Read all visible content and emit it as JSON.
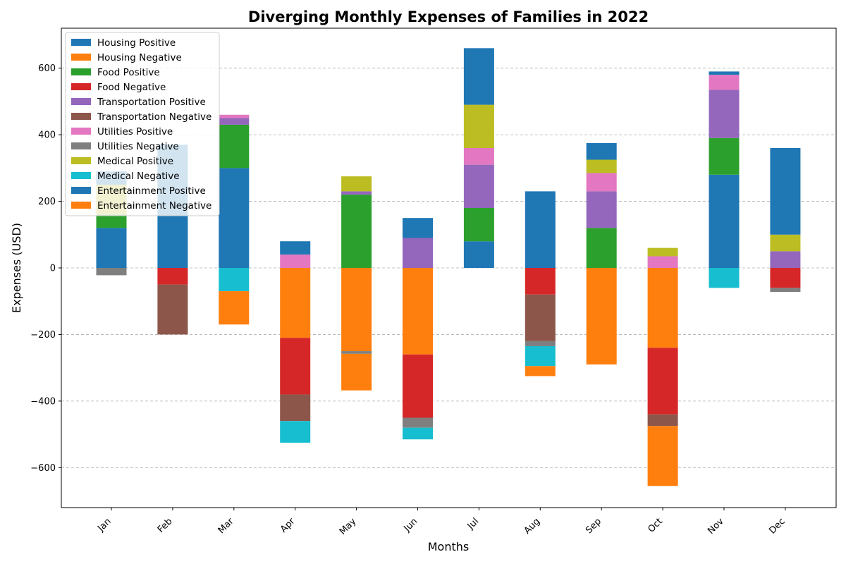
{
  "chart_data": {
    "type": "bar",
    "title": "Diverging Monthly Expenses of Families in 2022",
    "xlabel": "Months",
    "ylabel": "Expenses (USD)",
    "ylim": [
      -720,
      720
    ],
    "yticks": [
      -600,
      -400,
      -200,
      0,
      200,
      400,
      600
    ],
    "grid": "y-dashed",
    "legend_position": "top-left",
    "categories": [
      "Jan",
      "Feb",
      "Mar",
      "Apr",
      "May",
      "Jun",
      "Jul",
      "Aug",
      "Sep",
      "Oct",
      "Nov",
      "Dec"
    ],
    "series": [
      {
        "name": "Housing Positive",
        "sign": "positive",
        "color": "#1f77b4",
        "values": [
          120,
          230,
          300,
          0,
          0,
          0,
          80,
          0,
          0,
          0,
          280,
          0
        ]
      },
      {
        "name": "Housing Negative",
        "sign": "negative",
        "color": "#ff7f0e",
        "values": [
          0,
          0,
          0,
          210,
          250,
          260,
          0,
          0,
          290,
          240,
          0,
          0
        ]
      },
      {
        "name": "Food Positive",
        "sign": "positive",
        "color": "#2ca02c",
        "values": [
          40,
          0,
          130,
          0,
          220,
          0,
          100,
          0,
          120,
          0,
          110,
          0
        ]
      },
      {
        "name": "Food Negative",
        "sign": "negative",
        "color": "#d62728",
        "values": [
          0,
          50,
          0,
          170,
          0,
          190,
          0,
          80,
          0,
          200,
          0,
          60
        ]
      },
      {
        "name": "Transportation Positive",
        "sign": "positive",
        "color": "#9467bd",
        "values": [
          0,
          0,
          20,
          0,
          10,
          90,
          130,
          0,
          110,
          0,
          145,
          50
        ]
      },
      {
        "name": "Transportation Negative",
        "sign": "negative",
        "color": "#8c564b",
        "values": [
          0,
          150,
          0,
          80,
          0,
          0,
          0,
          140,
          0,
          35,
          0,
          0
        ]
      },
      {
        "name": "Utilities Positive",
        "sign": "positive",
        "color": "#e377c2",
        "values": [
          0,
          0,
          10,
          40,
          0,
          0,
          50,
          0,
          55,
          35,
          45,
          0
        ]
      },
      {
        "name": "Utilities Negative",
        "sign": "negative",
        "color": "#7f7f7f",
        "values": [
          22,
          0,
          0,
          0,
          8,
          30,
          0,
          15,
          0,
          0,
          0,
          12
        ]
      },
      {
        "name": "Medical Positive",
        "sign": "positive",
        "color": "#bcbd22",
        "values": [
          90,
          0,
          0,
          0,
          45,
          0,
          130,
          0,
          40,
          25,
          0,
          50
        ]
      },
      {
        "name": "Medical Negative",
        "sign": "negative",
        "color": "#17becf",
        "values": [
          0,
          0,
          70,
          65,
          0,
          35,
          0,
          60,
          0,
          0,
          60,
          0
        ]
      },
      {
        "name": "Entertainment Positive",
        "sign": "positive",
        "color": "#1f77b4",
        "values": [
          40,
          140,
          0,
          40,
          0,
          60,
          170,
          230,
          50,
          0,
          10,
          260
        ]
      },
      {
        "name": "Entertainment Negative",
        "sign": "negative",
        "color": "#ff7f0e",
        "values": [
          0,
          0,
          100,
          0,
          110,
          0,
          0,
          30,
          0,
          180,
          0,
          0
        ]
      }
    ]
  }
}
